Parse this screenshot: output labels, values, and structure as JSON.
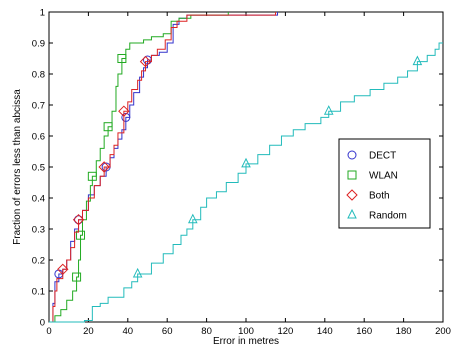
{
  "chart_data": {
    "type": "line",
    "step": true,
    "xlabel": "Error in metres",
    "ylabel": "Fraction of errors less than abcissa",
    "xlim": [
      0,
      200
    ],
    "ylim": [
      0,
      1
    ],
    "xticks": [
      0,
      20,
      40,
      60,
      80,
      100,
      120,
      140,
      160,
      180,
      200
    ],
    "yticks": [
      0,
      0.1,
      0.2,
      0.3,
      0.4,
      0.5,
      0.6,
      0.7,
      0.8,
      0.9,
      1
    ],
    "grid": false,
    "legend": "center-right",
    "colors": {
      "axis": "#000000",
      "background": "#ffffff"
    },
    "series": [
      {
        "name": "DECT",
        "color": "#3333cc",
        "marker": "circle",
        "markers": [
          [
            5,
            0.155
          ],
          [
            15,
            0.33
          ],
          [
            29,
            0.5
          ],
          [
            39,
            0.66
          ],
          [
            50,
            0.845
          ]
        ],
        "points": [
          [
            0,
            0
          ],
          [
            2,
            0.06
          ],
          [
            3,
            0.13
          ],
          [
            5,
            0.155
          ],
          [
            7,
            0.17
          ],
          [
            9,
            0.2
          ],
          [
            11,
            0.26
          ],
          [
            13,
            0.3
          ],
          [
            15,
            0.33
          ],
          [
            17,
            0.36
          ],
          [
            20,
            0.41
          ],
          [
            23,
            0.44
          ],
          [
            26,
            0.47
          ],
          [
            29,
            0.5
          ],
          [
            31,
            0.53
          ],
          [
            33,
            0.56
          ],
          [
            35,
            0.59
          ],
          [
            37,
            0.62
          ],
          [
            39,
            0.66
          ],
          [
            41,
            0.7
          ],
          [
            43,
            0.74
          ],
          [
            46,
            0.79
          ],
          [
            48,
            0.82
          ],
          [
            50,
            0.845
          ],
          [
            52,
            0.86
          ],
          [
            56,
            0.87
          ],
          [
            60,
            0.9
          ],
          [
            63,
            0.96
          ],
          [
            66,
            0.98
          ],
          [
            70,
            0.99
          ],
          [
            100,
            0.99
          ],
          [
            116,
            1
          ]
        ]
      },
      {
        "name": "WLAN",
        "color": "#22aa22",
        "marker": "square",
        "markers": [
          [
            14,
            0.145
          ],
          [
            16,
            0.28
          ],
          [
            22,
            0.47
          ],
          [
            30,
            0.63
          ],
          [
            37,
            0.85
          ]
        ],
        "points": [
          [
            0,
            0
          ],
          [
            3,
            0.02
          ],
          [
            6,
            0.04
          ],
          [
            9,
            0.07
          ],
          [
            12,
            0.1
          ],
          [
            14,
            0.145
          ],
          [
            15,
            0.2
          ],
          [
            16,
            0.28
          ],
          [
            17,
            0.33
          ],
          [
            19,
            0.39
          ],
          [
            21,
            0.44
          ],
          [
            22,
            0.47
          ],
          [
            24,
            0.52
          ],
          [
            26,
            0.56
          ],
          [
            28,
            0.6
          ],
          [
            30,
            0.63
          ],
          [
            32,
            0.68
          ],
          [
            34,
            0.76
          ],
          [
            35,
            0.8
          ],
          [
            37,
            0.85
          ],
          [
            39,
            0.88
          ],
          [
            41,
            0.9
          ],
          [
            48,
            0.91
          ],
          [
            52,
            0.92
          ],
          [
            58,
            0.93
          ],
          [
            62,
            0.97
          ],
          [
            66,
            0.98
          ],
          [
            72,
            0.99
          ],
          [
            90,
            0.99
          ],
          [
            91,
            1
          ]
        ]
      },
      {
        "name": "Both",
        "color": "#dd2222",
        "marker": "diamond",
        "markers": [
          [
            7,
            0.17
          ],
          [
            15,
            0.33
          ],
          [
            28,
            0.5
          ],
          [
            38,
            0.68
          ],
          [
            49,
            0.84
          ]
        ],
        "points": [
          [
            0,
            0
          ],
          [
            2,
            0.05
          ],
          [
            3,
            0.1
          ],
          [
            4,
            0.14
          ],
          [
            7,
            0.17
          ],
          [
            9,
            0.2
          ],
          [
            11,
            0.24
          ],
          [
            13,
            0.29
          ],
          [
            15,
            0.33
          ],
          [
            17,
            0.36
          ],
          [
            20,
            0.4
          ],
          [
            23,
            0.44
          ],
          [
            26,
            0.47
          ],
          [
            28,
            0.5
          ],
          [
            31,
            0.54
          ],
          [
            33,
            0.57
          ],
          [
            35,
            0.61
          ],
          [
            38,
            0.68
          ],
          [
            40,
            0.71
          ],
          [
            42,
            0.75
          ],
          [
            45,
            0.78
          ],
          [
            47,
            0.81
          ],
          [
            49,
            0.84
          ],
          [
            52,
            0.86
          ],
          [
            55,
            0.88
          ],
          [
            59,
            0.91
          ],
          [
            62,
            0.95
          ],
          [
            65,
            0.97
          ],
          [
            70,
            0.99
          ],
          [
            100,
            0.99
          ],
          [
            115,
            1
          ]
        ]
      },
      {
        "name": "Random",
        "color": "#22bbbb",
        "marker": "triangle",
        "markers": [
          [
            45,
            0.155
          ],
          [
            73,
            0.33
          ],
          [
            100,
            0.51
          ],
          [
            142,
            0.68
          ],
          [
            187,
            0.84
          ]
        ],
        "points": [
          [
            0,
            0
          ],
          [
            18,
            0.005
          ],
          [
            22,
            0.05
          ],
          [
            26,
            0.06
          ],
          [
            30,
            0.08
          ],
          [
            38,
            0.11
          ],
          [
            42,
            0.13
          ],
          [
            45,
            0.155
          ],
          [
            52,
            0.19
          ],
          [
            58,
            0.22
          ],
          [
            63,
            0.25
          ],
          [
            67,
            0.28
          ],
          [
            70,
            0.3
          ],
          [
            73,
            0.33
          ],
          [
            77,
            0.37
          ],
          [
            80,
            0.4
          ],
          [
            85,
            0.42
          ],
          [
            90,
            0.45
          ],
          [
            96,
            0.48
          ],
          [
            100,
            0.51
          ],
          [
            106,
            0.54
          ],
          [
            112,
            0.57
          ],
          [
            118,
            0.6
          ],
          [
            124,
            0.62
          ],
          [
            130,
            0.64
          ],
          [
            138,
            0.66
          ],
          [
            142,
            0.68
          ],
          [
            148,
            0.71
          ],
          [
            155,
            0.73
          ],
          [
            163,
            0.75
          ],
          [
            170,
            0.77
          ],
          [
            177,
            0.79
          ],
          [
            182,
            0.81
          ],
          [
            187,
            0.84
          ],
          [
            192,
            0.86
          ],
          [
            196,
            0.88
          ],
          [
            198,
            0.9
          ],
          [
            200,
            0.9
          ]
        ]
      }
    ]
  }
}
